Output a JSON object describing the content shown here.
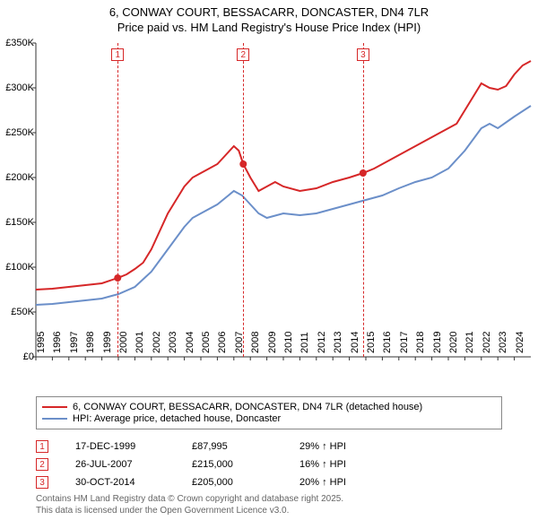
{
  "title": {
    "line1": "6, CONWAY COURT, BESSACARR, DONCASTER, DN4 7LR",
    "line2": "Price paid vs. HM Land Registry's House Price Index (HPI)",
    "fontsize": 13
  },
  "chart": {
    "type": "line",
    "xlim": [
      1995,
      2025
    ],
    "ylim": [
      0,
      350000
    ],
    "ytick_step": 50000,
    "yticks": [
      {
        "v": 0,
        "label": "£0"
      },
      {
        "v": 50000,
        "label": "£50K"
      },
      {
        "v": 100000,
        "label": "£100K"
      },
      {
        "v": 150000,
        "label": "£150K"
      },
      {
        "v": 200000,
        "label": "£200K"
      },
      {
        "v": 250000,
        "label": "£250K"
      },
      {
        "v": 300000,
        "label": "£300K"
      },
      {
        "v": 350000,
        "label": "£350K"
      }
    ],
    "xticks": [
      1995,
      1996,
      1997,
      1998,
      1999,
      2000,
      2001,
      2002,
      2003,
      2004,
      2005,
      2006,
      2007,
      2008,
      2009,
      2010,
      2011,
      2012,
      2013,
      2014,
      2015,
      2016,
      2017,
      2018,
      2019,
      2020,
      2021,
      2022,
      2023,
      2024
    ],
    "background_color": "#ffffff",
    "axis_color": "#333333",
    "label_fontsize": 11,
    "series": [
      {
        "name": "6, CONWAY COURT, BESSACARR, DONCASTER, DN4 7LR (detached house)",
        "color": "#d62728",
        "line_width": 2,
        "points": [
          [
            1995.0,
            75000
          ],
          [
            1996.0,
            76000
          ],
          [
            1997.0,
            78000
          ],
          [
            1998.0,
            80000
          ],
          [
            1999.0,
            82000
          ],
          [
            1999.96,
            87995
          ],
          [
            2000.5,
            92000
          ],
          [
            2001.0,
            98000
          ],
          [
            2001.5,
            105000
          ],
          [
            2002.0,
            120000
          ],
          [
            2002.5,
            140000
          ],
          [
            2003.0,
            160000
          ],
          [
            2003.5,
            175000
          ],
          [
            2004.0,
            190000
          ],
          [
            2004.5,
            200000
          ],
          [
            2005.0,
            205000
          ],
          [
            2005.5,
            210000
          ],
          [
            2006.0,
            215000
          ],
          [
            2006.5,
            225000
          ],
          [
            2007.0,
            235000
          ],
          [
            2007.3,
            230000
          ],
          [
            2007.57,
            215000
          ],
          [
            2008.0,
            200000
          ],
          [
            2008.5,
            185000
          ],
          [
            2009.0,
            190000
          ],
          [
            2009.5,
            195000
          ],
          [
            2010.0,
            190000
          ],
          [
            2011.0,
            185000
          ],
          [
            2012.0,
            188000
          ],
          [
            2013.0,
            195000
          ],
          [
            2014.0,
            200000
          ],
          [
            2014.83,
            205000
          ],
          [
            2015.5,
            210000
          ],
          [
            2016.0,
            215000
          ],
          [
            2017.0,
            225000
          ],
          [
            2018.0,
            235000
          ],
          [
            2019.0,
            245000
          ],
          [
            2020.0,
            255000
          ],
          [
            2020.5,
            260000
          ],
          [
            2021.0,
            275000
          ],
          [
            2021.5,
            290000
          ],
          [
            2022.0,
            305000
          ],
          [
            2022.5,
            300000
          ],
          [
            2023.0,
            298000
          ],
          [
            2023.5,
            302000
          ],
          [
            2024.0,
            315000
          ],
          [
            2024.5,
            325000
          ],
          [
            2025.0,
            330000
          ]
        ]
      },
      {
        "name": "HPI: Average price, detached house, Doncaster",
        "color": "#6b8fc9",
        "line_width": 2,
        "points": [
          [
            1995.0,
            58000
          ],
          [
            1996.0,
            59000
          ],
          [
            1997.0,
            61000
          ],
          [
            1998.0,
            63000
          ],
          [
            1999.0,
            65000
          ],
          [
            2000.0,
            70000
          ],
          [
            2001.0,
            78000
          ],
          [
            2002.0,
            95000
          ],
          [
            2003.0,
            120000
          ],
          [
            2004.0,
            145000
          ],
          [
            2004.5,
            155000
          ],
          [
            2005.0,
            160000
          ],
          [
            2006.0,
            170000
          ],
          [
            2007.0,
            185000
          ],
          [
            2007.5,
            180000
          ],
          [
            2008.0,
            170000
          ],
          [
            2008.5,
            160000
          ],
          [
            2009.0,
            155000
          ],
          [
            2010.0,
            160000
          ],
          [
            2011.0,
            158000
          ],
          [
            2012.0,
            160000
          ],
          [
            2013.0,
            165000
          ],
          [
            2014.0,
            170000
          ],
          [
            2015.0,
            175000
          ],
          [
            2016.0,
            180000
          ],
          [
            2017.0,
            188000
          ],
          [
            2018.0,
            195000
          ],
          [
            2019.0,
            200000
          ],
          [
            2020.0,
            210000
          ],
          [
            2021.0,
            230000
          ],
          [
            2022.0,
            255000
          ],
          [
            2022.5,
            260000
          ],
          [
            2023.0,
            255000
          ],
          [
            2024.0,
            268000
          ],
          [
            2025.0,
            280000
          ]
        ]
      }
    ],
    "sale_markers": [
      {
        "n": "1",
        "x": 1999.96,
        "y": 87995,
        "color": "#d62728"
      },
      {
        "n": "2",
        "x": 2007.57,
        "y": 215000,
        "color": "#d62728"
      },
      {
        "n": "3",
        "x": 2014.83,
        "y": 205000,
        "color": "#d62728"
      }
    ]
  },
  "legend": {
    "items": [
      {
        "color": "#d62728",
        "label": "6, CONWAY COURT, BESSACARR, DONCASTER, DN4 7LR (detached house)"
      },
      {
        "color": "#6b8fc9",
        "label": "HPI: Average price, detached house, Doncaster"
      }
    ]
  },
  "sales_table": {
    "rows": [
      {
        "n": "1",
        "color": "#d62728",
        "date": "17-DEC-1999",
        "price": "£87,995",
        "hpi": "29% ↑ HPI"
      },
      {
        "n": "2",
        "color": "#d62728",
        "date": "26-JUL-2007",
        "price": "£215,000",
        "hpi": "16% ↑ HPI"
      },
      {
        "n": "3",
        "color": "#d62728",
        "date": "30-OCT-2014",
        "price": "£205,000",
        "hpi": "20% ↑ HPI"
      }
    ]
  },
  "footer": {
    "line1": "Contains HM Land Registry data © Crown copyright and database right 2025.",
    "line2": "This data is licensed under the Open Government Licence v3.0."
  }
}
